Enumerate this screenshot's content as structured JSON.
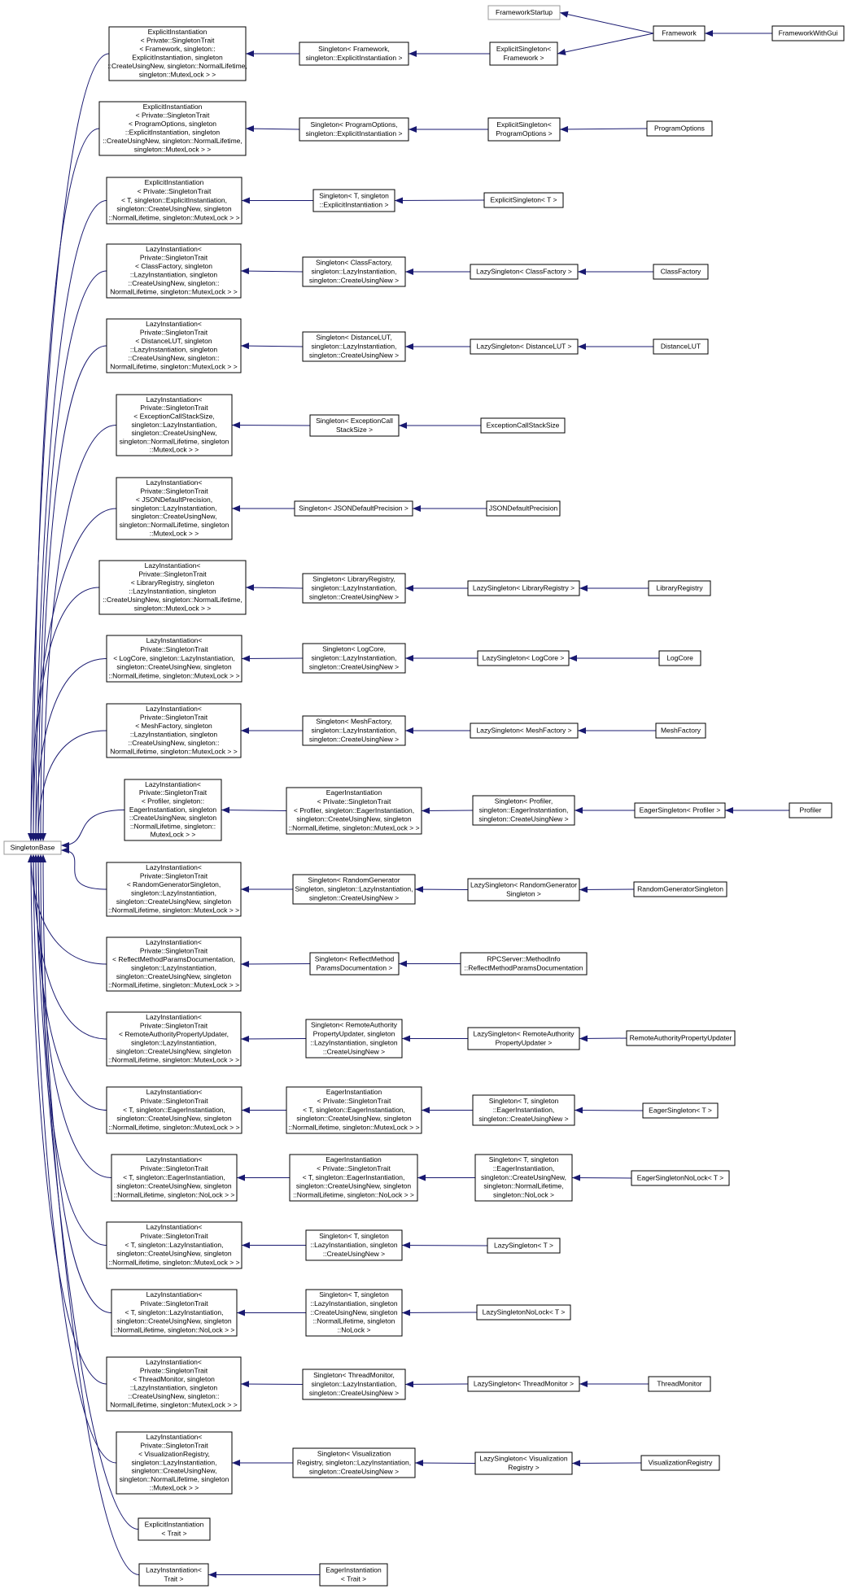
{
  "nodes": [
    {
      "lines": [
        "SingletonBase"
      ]
    },
    {
      "lines": [
        "ExplicitInstantiation",
        "< Private::SingletonTrait",
        "< Framework, singleton::",
        "ExplicitInstantiation, singleton",
        "::CreateUsingNew, singleton::NormalLifetime,",
        "singleton::MutexLock > >"
      ]
    },
    {
      "lines": [
        "Singleton< Framework,",
        "singleton::ExplicitInstantiation >"
      ]
    },
    {
      "lines": [
        "ExplicitSingleton<",
        "Framework >"
      ]
    },
    {
      "lines": [
        "FrameworkStartup"
      ]
    },
    {
      "lines": [
        "Framework"
      ]
    },
    {
      "lines": [
        "FrameworkWithGui"
      ]
    },
    {
      "lines": [
        "ExplicitInstantiation",
        "< Private::SingletonTrait",
        "< ProgramOptions, singleton",
        "::ExplicitInstantiation, singleton",
        "::CreateUsingNew, singleton::NormalLifetime,",
        "singleton::MutexLock > >"
      ]
    },
    {
      "lines": [
        "Singleton< ProgramOptions,",
        "singleton::ExplicitInstantiation >"
      ]
    },
    {
      "lines": [
        "ExplicitSingleton<",
        "ProgramOptions >"
      ]
    },
    {
      "lines": [
        "ProgramOptions"
      ]
    },
    {
      "lines": [
        "ExplicitInstantiation",
        "< Private::SingletonTrait",
        "< T, singleton::ExplicitInstantiation,",
        "singleton::CreateUsingNew, singleton",
        "::NormalLifetime, singleton::MutexLock > >"
      ]
    },
    {
      "lines": [
        "Singleton< T, singleton",
        "::ExplicitInstantiation >"
      ]
    },
    {
      "lines": [
        "ExplicitSingleton< T >"
      ]
    },
    {
      "lines": [
        "LazyInstantiation<",
        "Private::SingletonTrait",
        "< ClassFactory, singleton",
        "::LazyInstantiation, singleton",
        "::CreateUsingNew, singleton::",
        "NormalLifetime, singleton::MutexLock > >"
      ]
    },
    {
      "lines": [
        "Singleton< ClassFactory,",
        "singleton::LazyInstantiation,",
        "singleton::CreateUsingNew >"
      ]
    },
    {
      "lines": [
        "LazySingleton< ClassFactory >"
      ]
    },
    {
      "lines": [
        "ClassFactory"
      ]
    },
    {
      "lines": [
        "LazyInstantiation<",
        "Private::SingletonTrait",
        "< DistanceLUT, singleton",
        "::LazyInstantiation, singleton",
        "::CreateUsingNew, singleton::",
        "NormalLifetime, singleton::MutexLock > >"
      ]
    },
    {
      "lines": [
        "Singleton< DistanceLUT,",
        "singleton::LazyInstantiation,",
        "singleton::CreateUsingNew >"
      ]
    },
    {
      "lines": [
        "LazySingleton< DistanceLUT >"
      ]
    },
    {
      "lines": [
        "DistanceLUT"
      ]
    },
    {
      "lines": [
        "LazyInstantiation<",
        "Private::SingletonTrait",
        "< ExceptionCallStackSize,",
        "singleton::LazyInstantiation,",
        "singleton::CreateUsingNew,",
        "singleton::NormalLifetime, singleton",
        "::MutexLock > >"
      ]
    },
    {
      "lines": [
        "Singleton< ExceptionCall",
        "StackSize >"
      ]
    },
    {
      "lines": [
        "ExceptionCallStackSize"
      ]
    },
    {
      "lines": [
        "LazyInstantiation<",
        "Private::SingletonTrait",
        "< JSONDefaultPrecision,",
        "singleton::LazyInstantiation,",
        "singleton::CreateUsingNew,",
        "singleton::NormalLifetime, singleton",
        "::MutexLock > >"
      ]
    },
    {
      "lines": [
        "Singleton< JSONDefaultPrecision >"
      ]
    },
    {
      "lines": [
        "JSONDefaultPrecision"
      ]
    },
    {
      "lines": [
        "LazyInstantiation<",
        "Private::SingletonTrait",
        "< LibraryRegistry, singleton",
        "::LazyInstantiation, singleton",
        "::CreateUsingNew, singleton::NormalLifetime,",
        "singleton::MutexLock > >"
      ]
    },
    {
      "lines": [
        "Singleton< LibraryRegistry,",
        "singleton::LazyInstantiation,",
        "singleton::CreateUsingNew >"
      ]
    },
    {
      "lines": [
        "LazySingleton< LibraryRegistry >"
      ]
    },
    {
      "lines": [
        "LibraryRegistry"
      ]
    },
    {
      "lines": [
        "LazyInstantiation<",
        "Private::SingletonTrait",
        "< LogCore, singleton::LazyInstantiation,",
        "singleton::CreateUsingNew, singleton",
        "::NormalLifetime, singleton::MutexLock > >"
      ]
    },
    {
      "lines": [
        "Singleton< LogCore,",
        "singleton::LazyInstantiation,",
        "singleton::CreateUsingNew >"
      ]
    },
    {
      "lines": [
        "LazySingleton< LogCore >"
      ]
    },
    {
      "lines": [
        "LogCore"
      ]
    },
    {
      "lines": [
        "LazyInstantiation<",
        "Private::SingletonTrait",
        "< MeshFactory, singleton",
        "::LazyInstantiation, singleton",
        "::CreateUsingNew, singleton::",
        "NormalLifetime, singleton::MutexLock > >"
      ]
    },
    {
      "lines": [
        "Singleton< MeshFactory,",
        "singleton::LazyInstantiation,",
        "singleton::CreateUsingNew >"
      ]
    },
    {
      "lines": [
        "LazySingleton< MeshFactory >"
      ]
    },
    {
      "lines": [
        "MeshFactory"
      ]
    },
    {
      "lines": [
        "LazyInstantiation<",
        "Private::SingletonTrait",
        "< Profiler, singleton::",
        "EagerInstantiation, singleton",
        "::CreateUsingNew, singleton",
        "::NormalLifetime, singleton::",
        "MutexLock > >"
      ]
    },
    {
      "lines": [
        "EagerInstantiation",
        "< Private::SingletonTrait",
        "< Profiler, singleton::EagerInstantiation,",
        "singleton::CreateUsingNew, singleton",
        "::NormalLifetime, singleton::MutexLock > >"
      ]
    },
    {
      "lines": [
        "Singleton< Profiler,",
        "singleton::EagerInstantiation,",
        "singleton::CreateUsingNew >"
      ]
    },
    {
      "lines": [
        "EagerSingleton< Profiler >"
      ]
    },
    {
      "lines": [
        "Profiler"
      ]
    },
    {
      "lines": [
        "LazyInstantiation<",
        "Private::SingletonTrait",
        "< RandomGeneratorSingleton,",
        "singleton::LazyInstantiation,",
        "singleton::CreateUsingNew, singleton",
        "::NormalLifetime, singleton::MutexLock > >"
      ]
    },
    {
      "lines": [
        "Singleton< RandomGenerator",
        "Singleton, singleton::LazyInstantiation,",
        "singleton::CreateUsingNew >"
      ]
    },
    {
      "lines": [
        "LazySingleton< RandomGenerator",
        "Singleton >"
      ]
    },
    {
      "lines": [
        "RandomGeneratorSingleton"
      ]
    },
    {
      "lines": [
        "LazyInstantiation<",
        "Private::SingletonTrait",
        "< ReflectMethodParamsDocumentation,",
        "singleton::LazyInstantiation,",
        "singleton::CreateUsingNew, singleton",
        "::NormalLifetime, singleton::MutexLock > >"
      ]
    },
    {
      "lines": [
        "Singleton< ReflectMethod",
        "ParamsDocumentation >"
      ]
    },
    {
      "lines": [
        "RPCServer::MethodInfo",
        "::ReflectMethodParamsDocumentation"
      ]
    },
    {
      "lines": [
        "LazyInstantiation<",
        "Private::SingletonTrait",
        "< RemoteAuthorityPropertyUpdater,",
        "singleton::LazyInstantiation,",
        "singleton::CreateUsingNew, singleton",
        "::NormalLifetime, singleton::MutexLock > >"
      ]
    },
    {
      "lines": [
        "Singleton< RemoteAuthority",
        "PropertyUpdater, singleton",
        "::LazyInstantiation, singleton",
        "::CreateUsingNew >"
      ]
    },
    {
      "lines": [
        "LazySingleton< RemoteAuthority",
        "PropertyUpdater >"
      ]
    },
    {
      "lines": [
        "RemoteAuthorityPropertyUpdater"
      ]
    },
    {
      "lines": [
        "LazyInstantiation<",
        "Private::SingletonTrait",
        "< T, singleton::EagerInstantiation,",
        "singleton::CreateUsingNew, singleton",
        "::NormalLifetime, singleton::MutexLock > >"
      ]
    },
    {
      "lines": [
        "EagerInstantiation",
        "< Private::SingletonTrait",
        "< T, singleton::EagerInstantiation,",
        "singleton::CreateUsingNew, singleton",
        "::NormalLifetime, singleton::MutexLock > >"
      ]
    },
    {
      "lines": [
        "Singleton< T, singleton",
        "::EagerInstantiation,",
        "singleton::CreateUsingNew >"
      ]
    },
    {
      "lines": [
        "EagerSingleton< T >"
      ]
    },
    {
      "lines": [
        "LazyInstantiation<",
        "Private::SingletonTrait",
        "< T, singleton::EagerInstantiation,",
        "singleton::CreateUsingNew, singleton",
        "::NormalLifetime, singleton::NoLock > >"
      ]
    },
    {
      "lines": [
        "EagerInstantiation",
        "< Private::SingletonTrait",
        "< T, singleton::EagerInstantiation,",
        "singleton::CreateUsingNew, singleton",
        "::NormalLifetime, singleton::NoLock > >"
      ]
    },
    {
      "lines": [
        "Singleton< T, singleton",
        "::EagerInstantiation,",
        "singleton::CreateUsingNew,",
        "singleton::NormalLifetime,",
        "singleton::NoLock >"
      ]
    },
    {
      "lines": [
        "EagerSingletonNoLock< T >"
      ]
    },
    {
      "lines": [
        "LazyInstantiation<",
        "Private::SingletonTrait",
        "< T, singleton::LazyInstantiation,",
        "singleton::CreateUsingNew, singleton",
        "::NormalLifetime, singleton::MutexLock > >"
      ]
    },
    {
      "lines": [
        "Singleton< T, singleton",
        "::LazyInstantiation, singleton",
        "::CreateUsingNew >"
      ]
    },
    {
      "lines": [
        "LazySingleton< T >"
      ]
    },
    {
      "lines": [
        "LazyInstantiation<",
        "Private::SingletonTrait",
        "< T, singleton::LazyInstantiation,",
        "singleton::CreateUsingNew, singleton",
        "::NormalLifetime, singleton::NoLock > >"
      ]
    },
    {
      "lines": [
        "Singleton< T, singleton",
        "::LazyInstantiation, singleton",
        "::CreateUsingNew, singleton",
        "::NormalLifetime, singleton",
        "::NoLock >"
      ]
    },
    {
      "lines": [
        "LazySingletonNoLock< T >"
      ]
    },
    {
      "lines": [
        "LazyInstantiation<",
        "Private::SingletonTrait",
        "< ThreadMonitor, singleton",
        "::LazyInstantiation, singleton",
        "::CreateUsingNew, singleton::",
        "NormalLifetime, singleton::MutexLock > >"
      ]
    },
    {
      "lines": [
        "Singleton< ThreadMonitor,",
        "singleton::LazyInstantiation,",
        "singleton::CreateUsingNew >"
      ]
    },
    {
      "lines": [
        "LazySingleton< ThreadMonitor >"
      ]
    },
    {
      "lines": [
        "ThreadMonitor"
      ]
    },
    {
      "lines": [
        "LazyInstantiation<",
        "Private::SingletonTrait",
        "< VisualizationRegistry,",
        "singleton::LazyInstantiation,",
        "singleton::CreateUsingNew,",
        "singleton::NormalLifetime, singleton",
        "::MutexLock > >"
      ]
    },
    {
      "lines": [
        "Singleton< Visualization",
        "Registry, singleton::LazyInstantiation,",
        "singleton::CreateUsingNew >"
      ]
    },
    {
      "lines": [
        "LazySingleton< Visualization",
        "Registry >"
      ]
    },
    {
      "lines": [
        "VisualizationRegistry"
      ]
    },
    {
      "lines": [
        "ExplicitInstantiation",
        "< Trait >"
      ]
    },
    {
      "lines": [
        "LazyInstantiation<",
        "Trait >"
      ]
    },
    {
      "lines": [
        "EagerInstantiation",
        "< Trait >"
      ]
    }
  ]
}
